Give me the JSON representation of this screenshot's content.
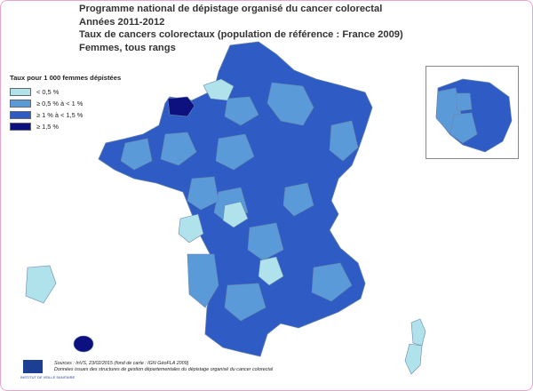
{
  "title": {
    "line1": "Programme national de dépistage organisé du cancer colorectal",
    "line2": "Années 2011-2012",
    "line3": "Taux de cancers colorectaux (population de référence : France 2009)",
    "line4": "Femmes, tous rangs"
  },
  "legend": {
    "title": "Taux pour 1 000 femmes dépistées",
    "items": [
      {
        "label": "< 0,5 %",
        "color": "#b0e2ec"
      },
      {
        "label": "≥ 0,5 % à < 1 %",
        "color": "#5a9ad8"
      },
      {
        "label": "≥ 1 % à < 1,5 %",
        "color": "#2e5cc4"
      },
      {
        "label": "≥ 1,5 %",
        "color": "#0d1180"
      }
    ]
  },
  "sources": {
    "line1": "Sources : InVS, 23/02/2015 (fond de carte : IGN GéoFLA 2009)",
    "line2": "Données issues des structures de gestion départementales du dépistage organisé du cancer colorectal"
  },
  "logo": {
    "text": "INSTITUT DE VEILLE SANITAIRE"
  }
}
